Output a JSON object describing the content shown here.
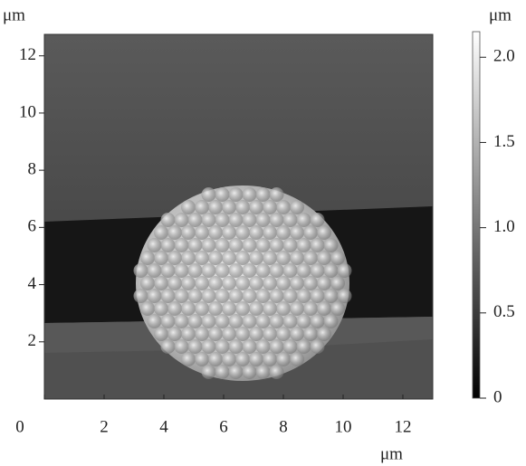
{
  "chart_data": {
    "type": "image",
    "xlabel": "μm",
    "ylabel": "μm",
    "xlim": [
      0,
      13
    ],
    "ylim": [
      0,
      12.75
    ],
    "xticks": [
      0,
      2,
      4,
      6,
      8,
      10,
      12
    ],
    "yticks": [
      2,
      4,
      6,
      8,
      10,
      12
    ],
    "colorbar": {
      "label": "μm",
      "lim": [
        0,
        2.15
      ],
      "ticks": [
        0,
        0.5,
        {
          "value": 1,
          "label": "1.0"
        },
        1.5,
        {
          "value": 2,
          "label": "2.0"
        }
      ]
    }
  }
}
